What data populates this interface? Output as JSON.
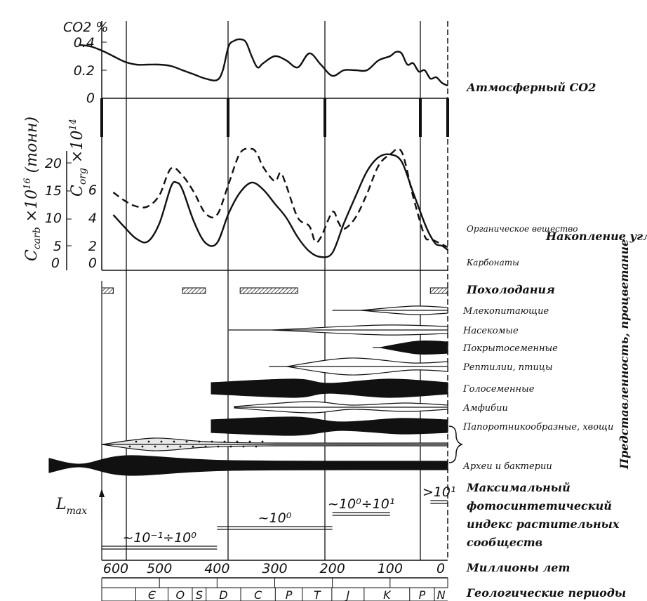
{
  "chart_data": [
    {
      "type": "line",
      "panel": "atmospheric-co2",
      "y_unit_label": "CO2 %",
      "y_ticks": [
        "0.4",
        "0.2",
        "0"
      ],
      "ylim": [
        0,
        0.45
      ],
      "right_label": "Атмосферный CO2",
      "series": [
        {
          "x": [
            640,
            620,
            600,
            580,
            560,
            540,
            520,
            500,
            480,
            460,
            440,
            420,
            400,
            390,
            380,
            370,
            360,
            350,
            340,
            330,
            320,
            300,
            280,
            260,
            240,
            220,
            200,
            180,
            160,
            140,
            120,
            100,
            90,
            80,
            70,
            60,
            50,
            40,
            30,
            20,
            10,
            0
          ],
          "values": [
            0.38,
            0.37,
            0.34,
            0.3,
            0.26,
            0.24,
            0.24,
            0.24,
            0.23,
            0.2,
            0.17,
            0.14,
            0.13,
            0.2,
            0.37,
            0.41,
            0.42,
            0.4,
            0.3,
            0.22,
            0.25,
            0.3,
            0.27,
            0.22,
            0.32,
            0.24,
            0.16,
            0.2,
            0.2,
            0.2,
            0.27,
            0.3,
            0.33,
            0.32,
            0.24,
            0.25,
            0.19,
            0.2,
            0.14,
            0.15,
            0.11,
            0.09
          ]
        }
      ]
    },
    {
      "type": "line",
      "panel": "carbon-accumulation",
      "y_left_ticks": [
        "20",
        "15",
        "10",
        "5",
        "0"
      ],
      "y_inner_ticks": [
        "6",
        "4",
        "2",
        "0"
      ],
      "ylim_carb": [
        0,
        20
      ],
      "ylim_org": [
        0,
        8
      ],
      "right_label": "Накопление углерода",
      "right_sub_label_1": "Органическое вещество",
      "right_sub_label_2": "Карбонаты",
      "series": [
        {
          "style": "solid",
          "x": [
            580,
            560,
            540,
            520,
            500,
            480,
            470,
            460,
            440,
            420,
            400,
            380,
            360,
            340,
            320,
            300,
            280,
            260,
            240,
            220,
            200,
            180,
            160,
            140,
            120,
            100,
            80,
            60,
            40,
            30,
            20,
            10,
            0
          ],
          "values": [
            3.3,
            2.4,
            1.6,
            1.4,
            2.7,
            5.3,
            5.6,
            5.1,
            2.8,
            1.3,
            1.3,
            3.4,
            4.9,
            5.6,
            5.1,
            4.1,
            3.1,
            1.7,
            0.7,
            0.3,
            0.6,
            2.7,
            4.6,
            6.4,
            7.4,
            7.6,
            7.1,
            4.9,
            2.7,
            1.8,
            1.2,
            1.1,
            0.8
          ]
        },
        {
          "style": "dashed",
          "x": [
            580,
            560,
            540,
            520,
            500,
            480,
            460,
            440,
            420,
            400,
            380,
            360,
            340,
            330,
            320,
            300,
            290,
            280,
            260,
            240,
            230,
            220,
            200,
            190,
            180,
            160,
            140,
            120,
            100,
            80,
            60,
            40,
            30,
            20,
            10,
            0
          ],
          "values": [
            4.9,
            4.3,
            3.9,
            3.9,
            4.7,
            6.6,
            6.1,
            4.9,
            3.4,
            3.3,
            5.5,
            7.7,
            8.0,
            7.6,
            6.7,
            5.7,
            6.3,
            5.4,
            3.1,
            2.5,
            1.4,
            1.7,
            3.5,
            2.8,
            2.3,
            3.1,
            4.8,
            6.8,
            7.6,
            7.8,
            4.6,
            1.8,
            1.6,
            1.4,
            1.2,
            1.0
          ]
        }
      ]
    },
    {
      "type": "timeline",
      "panel": "biota",
      "right_label": "Представленность, процветание",
      "glaciations_label": "Похолодания",
      "glaciations": [
        [
          620,
          580
        ],
        [
          460,
          420
        ],
        [
          360,
          260
        ],
        [
          30,
          0
        ]
      ],
      "groups": [
        {
          "name": "Млекопитающие",
          "start": 200,
          "fill": "open"
        },
        {
          "name": "Насекомые",
          "start": 380,
          "fill": "open"
        },
        {
          "name": "Покрытосеменные",
          "start": 130,
          "fill": "solid"
        },
        {
          "name": "Рептилии, птицы",
          "start": 310,
          "fill": "open"
        },
        {
          "name": "Голосеменные",
          "start": 410,
          "fill": "solid"
        },
        {
          "name": "Амфибии",
          "start": 370,
          "fill": "open"
        },
        {
          "name": "Папоротникообразные, хвощи",
          "start": 410,
          "fill": "solid"
        },
        {
          "name": "",
          "start": 600,
          "fill": "dotted"
        },
        {
          "name": "Археи и бактерии",
          "start": 700,
          "fill": "solid"
        }
      ]
    },
    {
      "type": "annotation",
      "panel": "photosynthetic-index",
      "left_label_main": "L",
      "left_label_sub": "max",
      "right_label": "Максимальный фотосинтетический индекс растительных сообществ",
      "ranges": [
        {
          "text": "~10⁻¹÷10⁰",
          "from": 600,
          "to": 400
        },
        {
          "text": "~10⁰",
          "from": 400,
          "to": 200
        },
        {
          "text": "~10⁰÷10¹",
          "from": 200,
          "to": 100
        },
        {
          "text": ">10¹",
          "from": 30,
          "to": 0
        }
      ]
    }
  ],
  "time_axis": {
    "label": "Миллионы лет",
    "ticks": [
      "600",
      "500",
      "400",
      "300",
      "200",
      "100",
      "0"
    ]
  },
  "periods": {
    "label": "Геологические периоды",
    "items": [
      "Є",
      "O",
      "S",
      "D",
      "C",
      "P",
      "T",
      "Ј",
      "K",
      "P",
      "N"
    ]
  }
}
